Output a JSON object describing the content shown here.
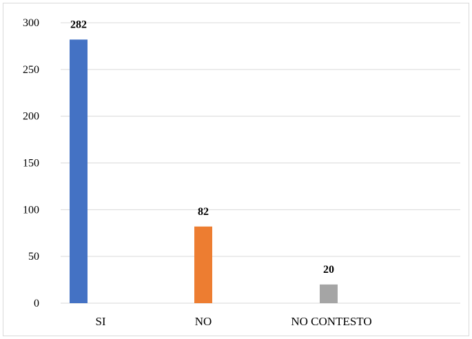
{
  "chart_data": {
    "type": "bar",
    "categories": [
      "SI",
      "NO",
      "NO CONTESTO"
    ],
    "values": [
      282,
      82,
      20
    ],
    "data_labels": [
      "282",
      "82",
      "20"
    ],
    "colors": [
      "#4472C4",
      "#ED7D31",
      "#A5A5A5"
    ],
    "y_ticks": [
      0,
      50,
      100,
      150,
      200,
      250,
      300
    ],
    "ylim": [
      0,
      300
    ],
    "title": "",
    "xlabel": "",
    "ylabel": "",
    "grid": true,
    "legend": "none"
  }
}
